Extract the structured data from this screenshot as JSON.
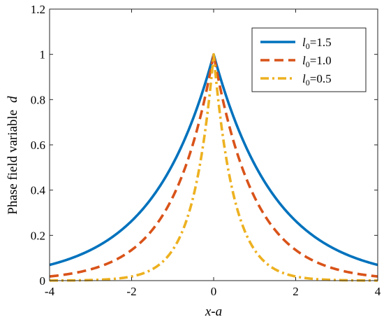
{
  "chart_data": {
    "type": "line",
    "title": "",
    "xlabel": "x-a",
    "ylabel": {
      "text": "Phase field variable",
      "symbol": "d"
    },
    "xlim": [
      -4,
      4
    ],
    "ylim": [
      0,
      1.2
    ],
    "x_ticks": [
      -4,
      -2,
      0,
      2,
      4
    ],
    "x_tick_labels": [
      "-4",
      "-2",
      "0",
      "2",
      "4"
    ],
    "y_ticks": [
      0,
      0.2,
      0.4,
      0.6,
      0.8,
      1,
      1.2
    ],
    "y_tick_labels": [
      "0",
      "0.2",
      "0.4",
      "0.6",
      "0.8",
      "1",
      "1.2"
    ],
    "grid": false,
    "legend_position": "top-right",
    "x": [
      -4,
      -3.5,
      -3,
      -2.5,
      -2,
      -1.5,
      -1,
      -0.75,
      -0.5,
      -0.25,
      0,
      0.25,
      0.5,
      0.75,
      1,
      1.5,
      2,
      2.5,
      3,
      3.5,
      4
    ],
    "series": [
      {
        "name": "l0=1.5",
        "label_var": "l",
        "label_sub": "0",
        "label_val": "=1.5",
        "color": "#0072BD",
        "style": "solid",
        "values": [
          0.069,
          0.097,
          0.135,
          0.189,
          0.264,
          0.368,
          0.513,
          0.607,
          0.717,
          0.846,
          1,
          0.846,
          0.717,
          0.607,
          0.513,
          0.368,
          0.264,
          0.189,
          0.135,
          0.097,
          0.069
        ]
      },
      {
        "name": "l0=1.0",
        "label_var": "l",
        "label_sub": "0",
        "label_val": "=1.0",
        "color": "#D95319",
        "style": "dashed",
        "values": [
          0.018,
          0.03,
          0.05,
          0.082,
          0.135,
          0.223,
          0.368,
          0.472,
          0.607,
          0.779,
          1,
          0.779,
          0.607,
          0.472,
          0.368,
          0.223,
          0.135,
          0.082,
          0.05,
          0.03,
          0.018
        ]
      },
      {
        "name": "l0=0.5",
        "label_var": "l",
        "label_sub": "0",
        "label_val": "=0.5",
        "color": "#EDB120",
        "style": "dashdot",
        "values": [
          0.0003,
          0.0009,
          0.0025,
          0.0067,
          0.018,
          0.05,
          0.135,
          0.223,
          0.368,
          0.607,
          1,
          0.607,
          0.368,
          0.223,
          0.135,
          0.05,
          0.018,
          0.0067,
          0.0025,
          0.0009,
          0.0003
        ]
      }
    ]
  }
}
